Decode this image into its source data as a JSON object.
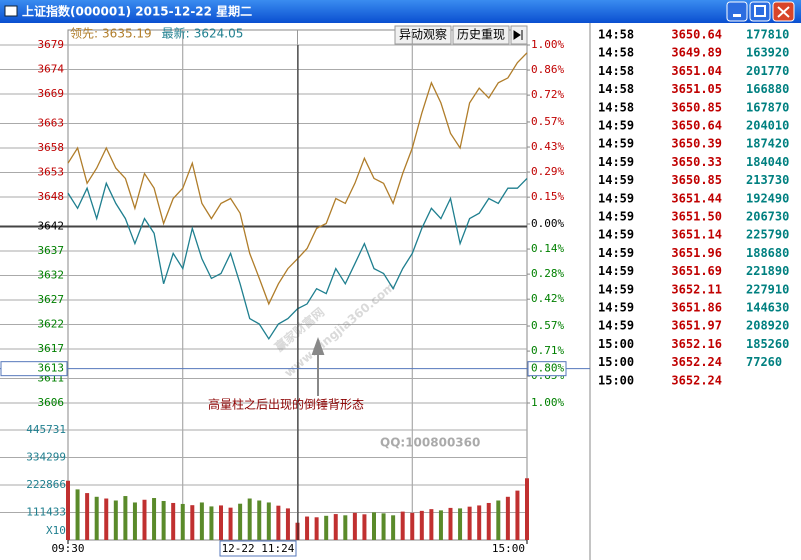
{
  "window": {
    "title": "上证指数(000001) 2015-12-22 星期二"
  },
  "toolbar": {
    "buttons": [
      "异动观察",
      "历史重现"
    ]
  },
  "chart_data": {
    "type": "line",
    "x": [
      0,
      5,
      10,
      15,
      20,
      25,
      30,
      35,
      40,
      45,
      50,
      55,
      60,
      65,
      70,
      75,
      80,
      85,
      90,
      95,
      100,
      105,
      110,
      115,
      120,
      125,
      130,
      135,
      140,
      145,
      150,
      155,
      160,
      165,
      170,
      175,
      180,
      185,
      190,
      195,
      200,
      205,
      210,
      215,
      220,
      225,
      230,
      235,
      240
    ],
    "xlim": [
      0,
      240
    ],
    "xticks": [
      {
        "value": 0,
        "label": "09:30"
      },
      {
        "value": 240,
        "label": "15:00"
      }
    ],
    "series": [
      {
        "name": "领先:",
        "readout": "3635.19",
        "color": "#b07d2a",
        "values": [
          3654.9,
          3658.0,
          3650.8,
          3653.9,
          3658.0,
          3653.9,
          3651.8,
          3645.7,
          3652.8,
          3649.8,
          3642.6,
          3647.7,
          3649.8,
          3654.9,
          3646.7,
          3643.6,
          3646.7,
          3647.7,
          3644.7,
          3636.5,
          3631.4,
          3626.2,
          3630.3,
          3633.4,
          3635.4,
          3637.5,
          3641.6,
          3642.6,
          3647.7,
          3646.7,
          3650.8,
          3655.9,
          3651.8,
          3650.8,
          3646.7,
          3652.8,
          3658.0,
          3665.1,
          3671.3,
          3667.2,
          3661.0,
          3658.0,
          3667.2,
          3670.2,
          3668.2,
          3671.3,
          3672.3,
          3675.4,
          3677.4
        ]
      },
      {
        "name": "最新:",
        "readout": "3624.05",
        "color": "#1f7f8f",
        "values": [
          3648.8,
          3645.7,
          3649.8,
          3643.6,
          3650.8,
          3646.7,
          3643.6,
          3638.5,
          3643.6,
          3640.6,
          3630.3,
          3636.5,
          3633.4,
          3641.6,
          3635.4,
          3631.4,
          3632.4,
          3636.5,
          3630.3,
          3623.2,
          3622.1,
          3619.1,
          3622.1,
          3623.2,
          3625.2,
          3626.2,
          3629.3,
          3628.3,
          3633.4,
          3630.3,
          3634.4,
          3638.5,
          3633.4,
          3632.4,
          3629.3,
          3633.4,
          3636.5,
          3641.6,
          3645.7,
          3643.6,
          3647.7,
          3638.5,
          3643.6,
          3644.7,
          3647.7,
          3646.7,
          3649.8,
          3649.8,
          3651.8
        ]
      }
    ],
    "ylim": [
      3606,
      3679
    ],
    "yticks": [
      3679,
      3674,
      3669,
      3663,
      3658,
      3653,
      3648,
      3642,
      3637,
      3632,
      3627,
      3622,
      3617,
      3611,
      3606
    ],
    "base": 3642,
    "y2lim": [
      -1,
      1
    ],
    "y2ticks": [
      {
        "value": 1,
        "label": "1.00%"
      },
      {
        "value": 0.86,
        "label": "0.86%"
      },
      {
        "value": 0.72,
        "label": "0.72%"
      },
      {
        "value": 0.57,
        "label": "0.57%"
      },
      {
        "value": 0.43,
        "label": "0.43%"
      },
      {
        "value": 0.29,
        "label": "0.29%"
      },
      {
        "value": 0.15,
        "label": "0.15%"
      },
      {
        "value": 0,
        "label": "0.00%"
      },
      {
        "value": -0.14,
        "label": "0.14%"
      },
      {
        "value": -0.28,
        "label": "0.28%"
      },
      {
        "value": -0.42,
        "label": "0.42%"
      },
      {
        "value": -0.57,
        "label": "0.57%"
      },
      {
        "value": -0.71,
        "label": "0.71%"
      },
      {
        "value": -0.85,
        "label": "0.85%"
      },
      {
        "value": -1,
        "label": "1.00%"
      }
    ],
    "up_color": "#c00000",
    "down_color": "#008000",
    "volume": {
      "values": [
        240000,
        205000,
        190000,
        175000,
        168000,
        160000,
        178000,
        152000,
        163000,
        170000,
        158000,
        150000,
        146000,
        141000,
        152000,
        136000,
        140000,
        131000,
        147000,
        168000,
        160000,
        152000,
        139000,
        128000,
        70000,
        95000,
        92000,
        98000,
        105000,
        100000,
        110000,
        104000,
        112000,
        108000,
        100000,
        115000,
        110000,
        118000,
        125000,
        120000,
        130000,
        128000,
        135000,
        140000,
        150000,
        160000,
        175000,
        200000,
        250000
      ],
      "ylim": [
        0,
        486000
      ],
      "yticks": [
        445731,
        334299,
        222866,
        111433
      ],
      "unit": "X10",
      "up_color": "#c03030",
      "down_color": "#5a8a2a"
    },
    "cursor": {
      "time": "12-22 11:24",
      "price": "3613",
      "percent": "0.80%"
    },
    "annotation": "高量柱之后出现的倒锤背形态",
    "watermark": [
      "赢家财富网",
      "www.yingjia360.com",
      "QQ:100800360"
    ]
  },
  "ticks_table": {
    "rows": [
      [
        "14:58",
        "3650.64",
        "177810"
      ],
      [
        "14:58",
        "3649.89",
        "163920"
      ],
      [
        "14:58",
        "3651.04",
        "201770"
      ],
      [
        "14:58",
        "3651.05",
        "166880"
      ],
      [
        "14:58",
        "3650.85",
        "167870"
      ],
      [
        "14:59",
        "3650.64",
        "204010"
      ],
      [
        "14:59",
        "3650.39",
        "187420"
      ],
      [
        "14:59",
        "3650.33",
        "184040"
      ],
      [
        "14:59",
        "3650.85",
        "213730"
      ],
      [
        "14:59",
        "3651.44",
        "192490"
      ],
      [
        "14:59",
        "3651.50",
        "206730"
      ],
      [
        "14:59",
        "3651.14",
        "225790"
      ],
      [
        "14:59",
        "3651.96",
        "188680"
      ],
      [
        "14:59",
        "3651.69",
        "221890"
      ],
      [
        "14:59",
        "3652.11",
        "227910"
      ],
      [
        "14:59",
        "3651.86",
        "144630"
      ],
      [
        "14:59",
        "3651.97",
        "208920"
      ],
      [
        "15:00",
        "3652.16",
        "185260"
      ],
      [
        "15:00",
        "3652.24",
        "77260"
      ],
      [
        "15:00",
        "3652.24"
      ]
    ]
  }
}
